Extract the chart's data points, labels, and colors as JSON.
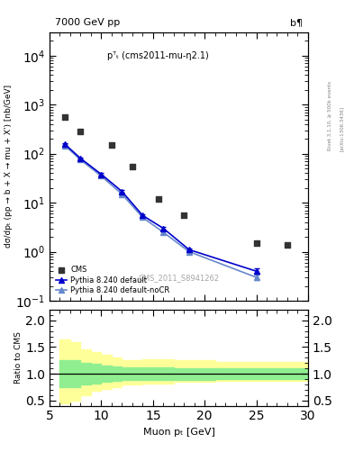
{
  "title_left": "7000 GeV pp",
  "title_right": "b¶",
  "annotation": "pᵀₜ (cms2011-mu-η2.1)",
  "watermark": "CMS_2011_S8941262",
  "rivet_label": "Rivet 3.1.10, ≥ 500k events",
  "arxiv_label": "[arXiv:1306.3436]",
  "ylabel_main": "dσ/dpₜ (pp → b + X → mu + X') [nb/GeV]",
  "ylabel_ratio": "Ratio to CMS",
  "xlabel": "Muon pₜ [GeV]",
  "xlim": [
    6,
    30
  ],
  "ylim_main": [
    0.1,
    30000
  ],
  "ylim_ratio": [
    0.4,
    2.2
  ],
  "cms_x": [
    6.5,
    8.0,
    11.0,
    13.0,
    15.5,
    18.0,
    25.0,
    28.0
  ],
  "cms_y": [
    550,
    280,
    150,
    55,
    12,
    5.5,
    1.5,
    1.4
  ],
  "cms_color": "#333333",
  "cms_marker": "s",
  "pythia_default_x": [
    6.5,
    8.0,
    10.0,
    12.0,
    14.0,
    16.0,
    18.5,
    25.0
  ],
  "pythia_default_y": [
    155,
    80,
    38,
    17,
    5.5,
    3.0,
    1.1,
    0.4
  ],
  "pythia_default_yerr": [
    10,
    5,
    2,
    1,
    0.4,
    0.2,
    0.08,
    0.05
  ],
  "pythia_default_color": "#0000cc",
  "pythia_nocr_x": [
    6.5,
    8.0,
    10.0,
    12.0,
    14.0,
    16.0,
    18.5,
    25.0
  ],
  "pythia_nocr_y": [
    145,
    75,
    35,
    15,
    5.0,
    2.5,
    1.0,
    0.3
  ],
  "pythia_nocr_yerr": [
    10,
    5,
    2,
    1,
    0.35,
    0.18,
    0.07,
    0.04
  ],
  "pythia_nocr_color": "#6688cc",
  "ratio_bins_x": [
    6,
    7,
    8,
    9,
    10,
    11,
    12,
    14,
    17,
    21,
    30
  ],
  "ratio_green_lo": [
    0.75,
    0.75,
    0.8,
    0.82,
    0.85,
    0.87,
    0.88,
    0.88,
    0.89,
    0.9
  ],
  "ratio_green_hi": [
    1.25,
    1.25,
    1.2,
    1.18,
    1.15,
    1.13,
    1.12,
    1.12,
    1.11,
    1.1
  ],
  "ratio_yellow_lo": [
    0.45,
    0.5,
    0.6,
    0.68,
    0.72,
    0.75,
    0.8,
    0.82,
    0.85,
    0.87
  ],
  "ratio_yellow_hi": [
    1.65,
    1.6,
    1.45,
    1.4,
    1.35,
    1.3,
    1.25,
    1.28,
    1.25,
    1.22
  ],
  "green_color": "#90ee90",
  "yellow_color": "#ffff99",
  "legend_entries": [
    "CMS",
    "Pythia 8.240 default",
    "Pythia 8.240 default-noCR"
  ]
}
